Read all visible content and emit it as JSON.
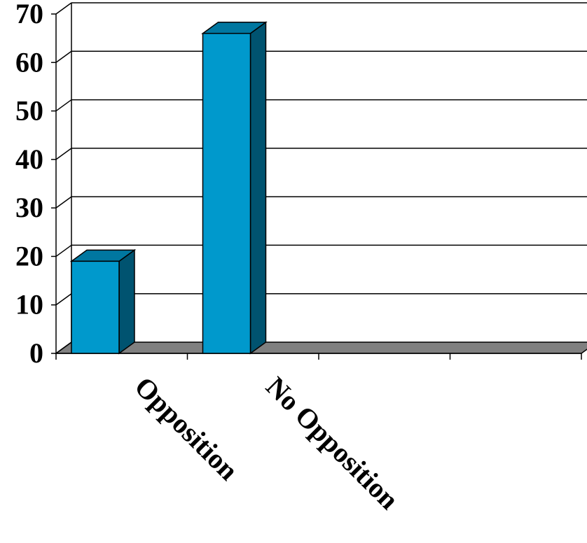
{
  "chart_data": {
    "type": "bar",
    "categories": [
      "Opposition",
      "No Opposition",
      "",
      ""
    ],
    "values": [
      19,
      66,
      null,
      null
    ],
    "ylim": [
      0,
      70
    ],
    "yticks": [
      "0",
      "10",
      "20",
      "30",
      "40",
      "50",
      "60",
      "70"
    ],
    "grid": true,
    "legend": "none",
    "style": "3d",
    "colors": {
      "bar_front": "#0099CC",
      "bar_side": "#005370",
      "bar_top": "#0077A0",
      "floor": "#808080",
      "grid": "#000000"
    }
  }
}
